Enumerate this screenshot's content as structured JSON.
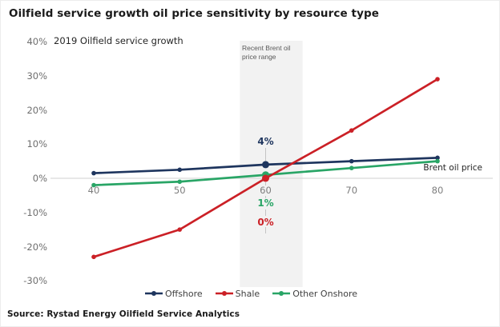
{
  "page": {
    "source": "Source: Rystad Energy Oilfield Service Analytics"
  },
  "colors": {
    "offshore": "#1e355e",
    "shale": "#cb2026",
    "other_onshore": "#29a566",
    "highlight_band": "#f2f2f2",
    "gridline": "#d9d9d9",
    "axis_text": "#6e6e6e",
    "title_text": "#1a1a1a"
  },
  "chart_data": {
    "type": "line",
    "title": "Oilfield service growth oil price sensitivity by resource type",
    "subtitle": "2019 Oilfield service growth",
    "xlabel": "Brent oil price",
    "ylabel": "2019 Oilfield service growth",
    "x": [
      40,
      50,
      60,
      70,
      80
    ],
    "xticks": [
      "40",
      "50",
      "60",
      "70",
      "80"
    ],
    "yticks": [
      {
        "label": "40%",
        "value": 40
      },
      {
        "label": "30%",
        "value": 30
      },
      {
        "label": "20%",
        "value": 20
      },
      {
        "label": "10%",
        "value": 10
      },
      {
        "label": "0%",
        "value": 0
      },
      {
        "label": "-10%",
        "value": -10
      },
      {
        "label": "-20%",
        "value": -20
      },
      {
        "label": "-30%",
        "value": -30
      }
    ],
    "ylim": [
      -30,
      40
    ],
    "grid": "horizontal line at 0% only",
    "legend_position": "bottom-center",
    "series": [
      {
        "name": "Offshore",
        "color": "#1e355e",
        "values": [
          1.5,
          2.5,
          4,
          5,
          6
        ]
      },
      {
        "name": "Shale",
        "color": "#cb2026",
        "values": [
          -23,
          -15,
          0,
          14,
          29
        ]
      },
      {
        "name": "Other Onshore",
        "color": "#29a566",
        "values": [
          -2,
          -1,
          1,
          3,
          5
        ]
      }
    ],
    "highlight_band": {
      "label": "Recent Brent oil price range",
      "x_from": 57,
      "x_to": 64.3,
      "color": "#f2f2f2"
    },
    "annotations": [
      {
        "text": "4%",
        "series": "Offshore",
        "x": 60,
        "value": 4,
        "color": "#1e355e"
      },
      {
        "text": "1%",
        "series": "Other Onshore",
        "x": 60,
        "value": 1,
        "color": "#29a566"
      },
      {
        "text": "0%",
        "series": "Shale",
        "x": 60,
        "value": 0,
        "color": "#cb2026"
      }
    ]
  }
}
